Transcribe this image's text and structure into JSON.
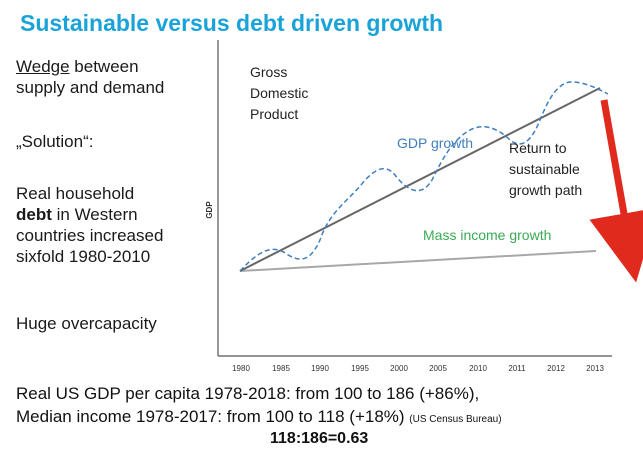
{
  "slide": {
    "title": "Sustainable versus debt driven growth",
    "left": {
      "wedge_word": "Wedge",
      "wedge_rest": " between",
      "wedge_line2": "supply and demand",
      "solution": "„Solution“:",
      "debt_line1": "Real household",
      "debt_bold": "debt",
      "debt_line2_rest": " in Western",
      "debt_line3": "countries increased",
      "debt_line4": "sixfold 1980-2010",
      "overcapacity": "Huge overcapacity"
    },
    "chart": {
      "y_axis_label": "GDP",
      "gross_label": [
        "Gross",
        "Domestic",
        "Product"
      ],
      "gdp_growth_label": "GDP growth",
      "return_label": [
        "Return to",
        "sustainable",
        "growth path"
      ],
      "mass_income_label": "Mass income growth",
      "x_ticks": [
        "1980",
        "1985",
        "1990",
        "1995",
        "2000",
        "2005",
        "2010",
        "2011",
        "2012",
        "2013"
      ]
    },
    "bottom": {
      "line1": "Real US GDP per capita 1978-2018: from 100 to 186 (+86%),",
      "line2_main": "Median income 1978-2017: from 100 to 118 (+18%)",
      "line2_source": "(US Census Bureau)",
      "ratio": "118:186=0.63"
    },
    "colors": {
      "title": "#1aa3d8",
      "trend": "#666666",
      "gdp_wave": "#3f7fc0",
      "mass_income_line": "#a8a8a8",
      "mass_income_text": "#3aaa55",
      "arrow": "#e02a1e"
    }
  }
}
